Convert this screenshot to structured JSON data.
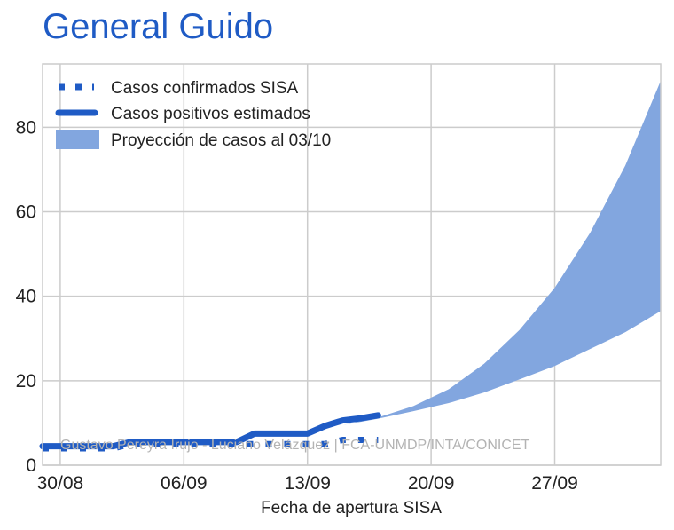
{
  "chart_data": {
    "type": "line",
    "title": "General Guido",
    "xlabel": "Fecha de apertura SISA",
    "ylabel": "",
    "x_ticks": [
      "30/08",
      "06/09",
      "13/09",
      "20/09",
      "27/09"
    ],
    "y_ticks": [
      "0",
      "20",
      "40",
      "60",
      "80"
    ],
    "xlim": [
      -1,
      34
    ],
    "ylim": [
      0,
      95
    ],
    "grid": true,
    "legend_position": "top-left",
    "watermark": "Gustavo Pereyra Irujo - Luciano Velázquez | FCA-UNMDP/INTA/CONICET",
    "colors": {
      "title": "#1f5bc5",
      "line": "#1f5bc5",
      "band": "#82a6df",
      "grid": "#cccccc"
    },
    "series": [
      {
        "name": "Casos confirmados SISA",
        "style": "dotted",
        "x": [
          -1,
          0,
          1,
          2,
          3,
          4,
          5,
          6,
          7,
          8,
          9,
          10,
          11,
          12,
          13,
          14,
          15,
          16,
          17,
          18
        ],
        "y": [
          4,
          4,
          4,
          4,
          4,
          5,
          5,
          5,
          5,
          5,
          5,
          5,
          5,
          5,
          5,
          5,
          5,
          6,
          6,
          6
        ]
      },
      {
        "name": "Casos positivos estimados",
        "style": "solid",
        "x": [
          -1,
          0,
          1,
          2,
          3,
          4,
          5,
          6,
          7,
          8,
          9,
          10,
          11,
          12,
          13,
          14,
          15,
          16,
          17,
          18
        ],
        "y": [
          4.5,
          4.5,
          4.5,
          4.5,
          4.5,
          5.5,
          5.5,
          5.5,
          5.5,
          5.5,
          5.5,
          5.5,
          7.5,
          7.5,
          7.5,
          7.5,
          9.3,
          10.6,
          11.1,
          11.8
        ]
      },
      {
        "name": "Proyección de casos al 03/10",
        "type": "band",
        "x": [
          16,
          18,
          20,
          22,
          24,
          26,
          28,
          30,
          32,
          34
        ],
        "lower": [
          9.5,
          11.0,
          12.8,
          14.7,
          17.2,
          20.3,
          23.5,
          27.5,
          31.5,
          36.5
        ],
        "upper": [
          9.5,
          11.3,
          14.0,
          18.0,
          24.0,
          32.0,
          42.0,
          55.0,
          71.0,
          91.0
        ]
      }
    ]
  }
}
